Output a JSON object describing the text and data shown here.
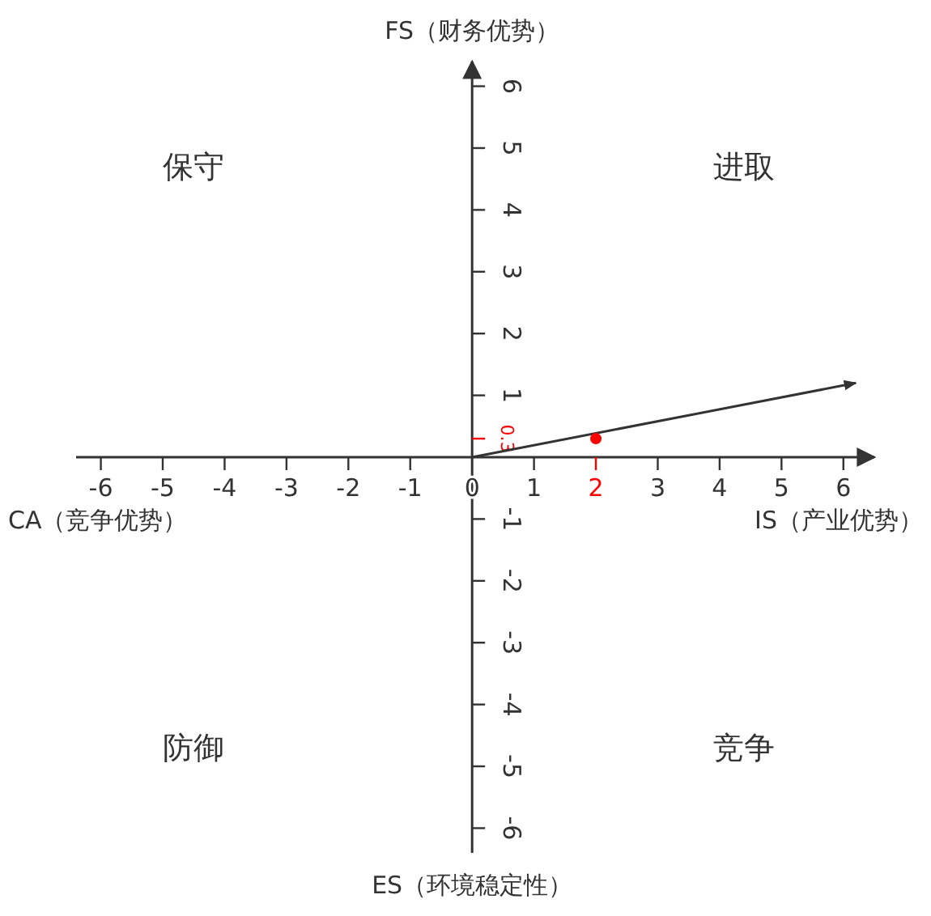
{
  "chart_data": {
    "type": "scatter",
    "xlabel": "IS（产业优势）",
    "ylabel": "FS（财务优势）",
    "xlim": [
      -6.4,
      6.5
    ],
    "ylim": [
      -6.4,
      6.4
    ],
    "xticks": [
      -6,
      -5,
      -4,
      -3,
      -2,
      -1,
      0,
      1,
      2,
      3,
      4,
      5,
      6
    ],
    "yticks": [
      -6,
      -5,
      -4,
      -3,
      -2,
      -1,
      0.3,
      1,
      2,
      3,
      4,
      5,
      6
    ],
    "grid": false,
    "marker": "circle",
    "series": [
      {
        "type": "line",
        "color": "#333333",
        "x": [
          0,
          6.2
        ],
        "values": [
          0,
          1.2
        ],
        "marker": "none"
      },
      {
        "color": "#ff0000",
        "x": [
          2
        ],
        "values": [
          0.3
        ]
      }
    ],
    "annotations": [
      "保守",
      "进取",
      "防御",
      "竞争",
      "CA（竞争优势）",
      "ES（环境稳定性）"
    ]
  }
}
